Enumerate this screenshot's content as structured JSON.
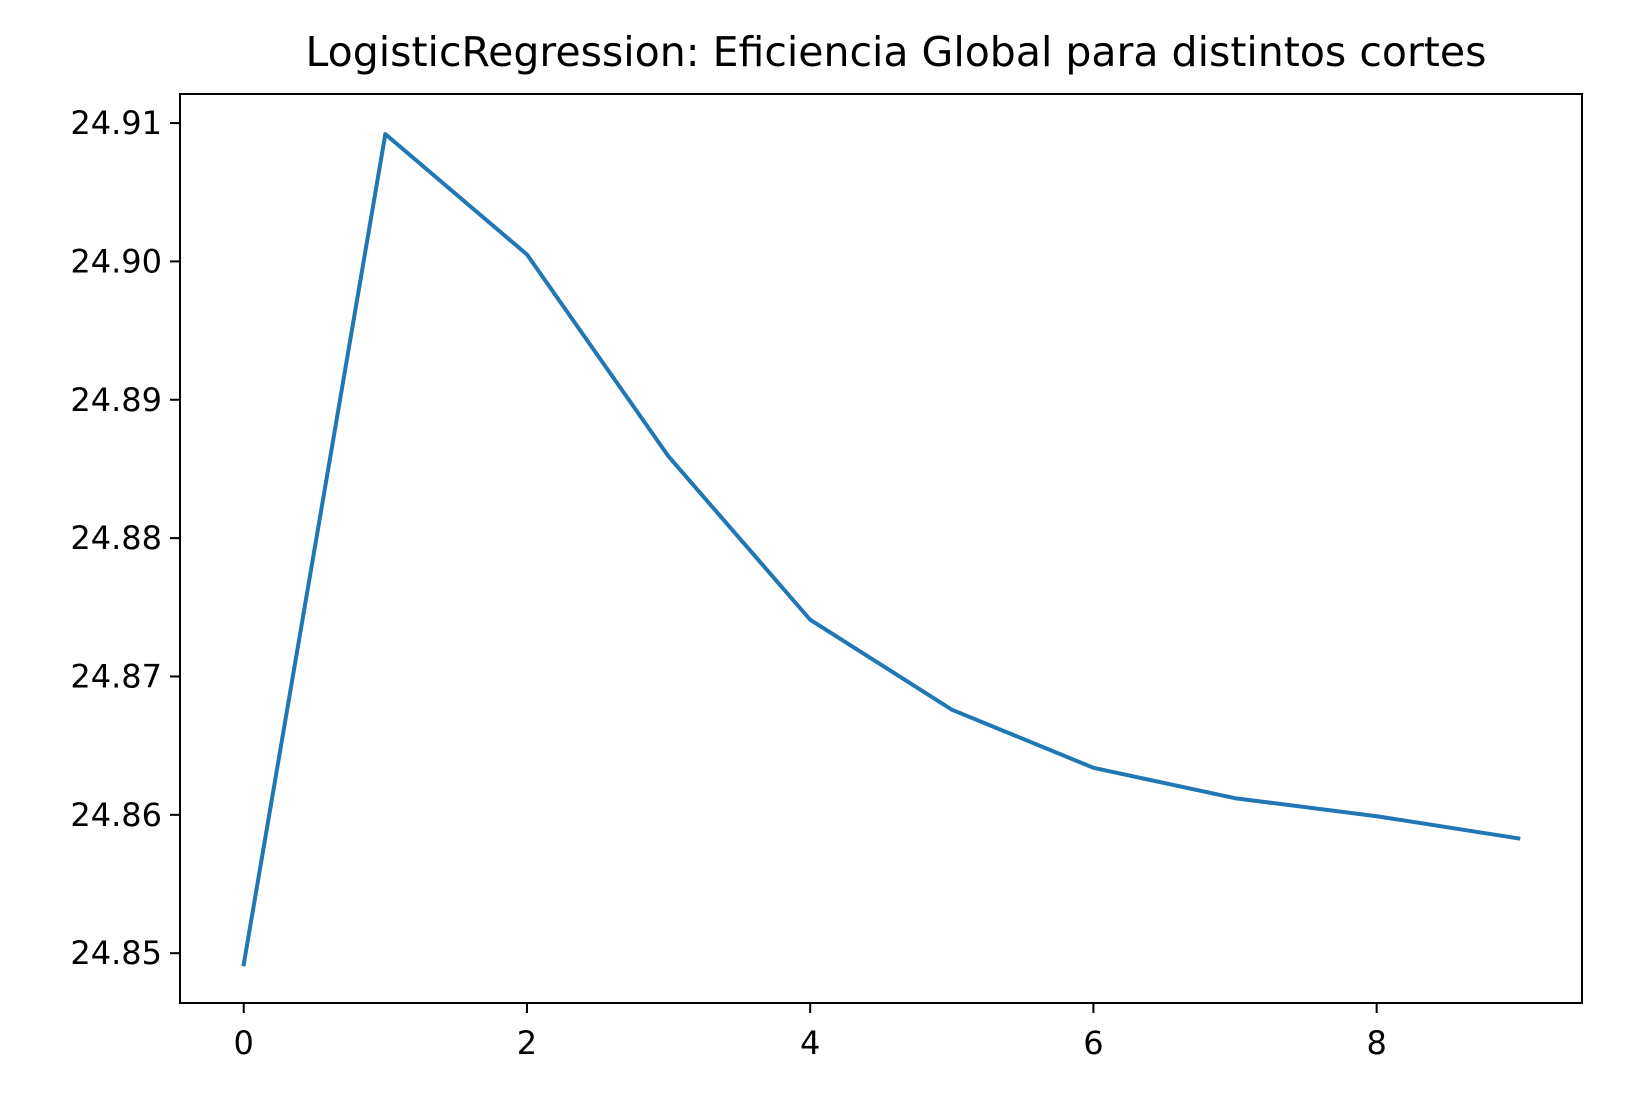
{
  "chart_data": {
    "type": "line",
    "title": "LogisticRegression: Eficiencia Global para distintos cortes",
    "xlabel": "",
    "ylabel": "",
    "x": [
      0,
      1,
      2,
      3,
      4,
      5,
      6,
      7,
      8,
      9
    ],
    "series": [
      {
        "values": [
          24.8492,
          24.9092,
          24.9005,
          24.8859,
          24.8741,
          24.8676,
          24.8634,
          24.8612,
          24.8599,
          24.8583
        ],
        "color": "#1f77b4"
      }
    ],
    "xlim": [
      -0.45,
      9.45
    ],
    "ylim": [
      24.8464,
      24.9121
    ],
    "xticks": [
      0,
      2,
      4,
      6,
      8
    ],
    "xtick_labels": [
      "0",
      "2",
      "4",
      "6",
      "8"
    ],
    "yticks": [
      24.85,
      24.86,
      24.87,
      24.88,
      24.89,
      24.9,
      24.91
    ],
    "ytick_labels": [
      "24.85",
      "24.86",
      "24.87",
      "24.88",
      "24.89",
      "24.90",
      "24.91"
    ],
    "grid": false,
    "legend": "none"
  }
}
